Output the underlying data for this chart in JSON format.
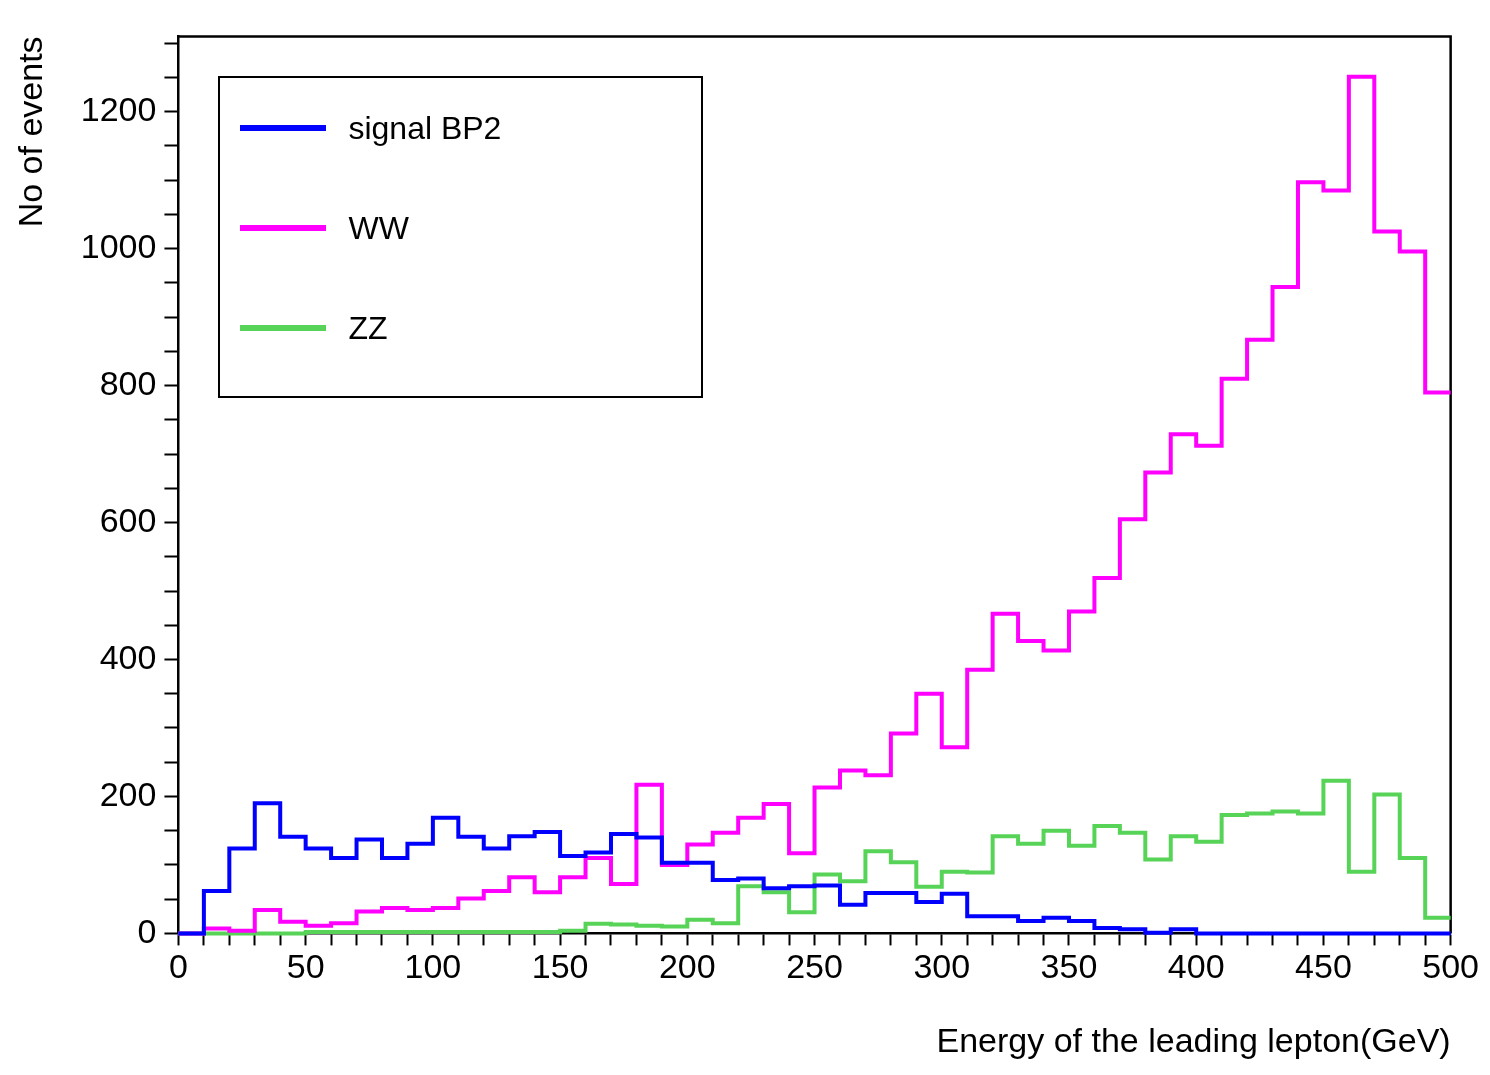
{
  "chart_data": {
    "type": "histogram",
    "xlabel": "Energy of the leading lepton(GeV)",
    "ylabel": "No of events",
    "bins": [
      0,
      10,
      20,
      30,
      40,
      50,
      60,
      70,
      80,
      90,
      100,
      110,
      120,
      130,
      140,
      150,
      160,
      170,
      180,
      190,
      200,
      210,
      220,
      230,
      240,
      250,
      260,
      270,
      280,
      290,
      300,
      310,
      320,
      330,
      340,
      350,
      360,
      370,
      380,
      390,
      400,
      410,
      420,
      430,
      440,
      450,
      460,
      470,
      480,
      490,
      500
    ],
    "series": [
      {
        "name": "signal BP2",
        "color": "#0000ff",
        "values": [
          0,
          62,
          124,
          190,
          141,
          124,
          110,
          137,
          110,
          131,
          169,
          141,
          124,
          142,
          148,
          113,
          118,
          145,
          140,
          103,
          103,
          78,
          80,
          66,
          69,
          70,
          42,
          59,
          59,
          46,
          58,
          25,
          25,
          18,
          23,
          18,
          8,
          6,
          1,
          6,
          0,
          0,
          0,
          0,
          0,
          0,
          0,
          0,
          0,
          0
        ]
      },
      {
        "name": "WW",
        "color": "#ff00ff",
        "values": [
          0,
          7,
          4,
          34,
          17,
          11,
          15,
          32,
          37,
          34,
          37,
          51,
          62,
          82,
          60,
          82,
          110,
          72,
          217,
          100,
          130,
          147,
          169,
          189,
          117,
          213,
          238,
          231,
          292,
          350,
          272,
          385,
          467,
          427,
          413,
          470,
          519,
          605,
          673,
          729,
          712,
          810,
          867,
          944,
          1097,
          1085,
          1251,
          1025,
          996,
          790
        ]
      },
      {
        "name": "ZZ",
        "color": "#57d457",
        "values": [
          0,
          0,
          0,
          0,
          0,
          2,
          2,
          2,
          2,
          2,
          2,
          2,
          2,
          2,
          2,
          4,
          14,
          13,
          11,
          10,
          20,
          15,
          69,
          60,
          31,
          86,
          76,
          120,
          104,
          68,
          90,
          89,
          142,
          131,
          150,
          128,
          157,
          147,
          108,
          142,
          134,
          173,
          175,
          178,
          175,
          223,
          90,
          203,
          110,
          23
        ]
      }
    ],
    "xlim": [
      0,
      500
    ],
    "xticks": [
      0,
      {
        "value": 10,
        "label": null
      },
      {
        "value": 20,
        "label": null
      },
      {
        "value": 30,
        "label": null
      },
      {
        "value": 40,
        "label": null
      },
      50,
      {
        "value": 60,
        "label": null
      },
      {
        "value": 70,
        "label": null
      },
      {
        "value": 80,
        "label": null
      },
      {
        "value": 90,
        "label": null
      },
      100,
      {
        "value": 110,
        "label": null
      },
      {
        "value": 120,
        "label": null
      },
      {
        "value": 130,
        "label": null
      },
      {
        "value": 140,
        "label": null
      },
      150,
      {
        "value": 160,
        "label": null
      },
      {
        "value": 170,
        "label": null
      },
      {
        "value": 180,
        "label": null
      },
      {
        "value": 190,
        "label": null
      },
      200,
      {
        "value": 210,
        "label": null
      },
      {
        "value": 220,
        "label": null
      },
      {
        "value": 230,
        "label": null
      },
      {
        "value": 240,
        "label": null
      },
      250,
      {
        "value": 260,
        "label": null
      },
      {
        "value": 270,
        "label": null
      },
      {
        "value": 280,
        "label": null
      },
      {
        "value": 290,
        "label": null
      },
      300,
      {
        "value": 310,
        "label": null
      },
      {
        "value": 320,
        "label": null
      },
      {
        "value": 330,
        "label": null
      },
      {
        "value": 340,
        "label": null
      },
      350,
      {
        "value": 360,
        "label": null
      },
      {
        "value": 370,
        "label": null
      },
      {
        "value": 380,
        "label": null
      },
      {
        "value": 390,
        "label": null
      },
      400,
      {
        "value": 410,
        "label": null
      },
      {
        "value": 420,
        "label": null
      },
      {
        "value": 430,
        "label": null
      },
      {
        "value": 440,
        "label": null
      },
      450,
      {
        "value": 460,
        "label": null
      },
      {
        "value": 470,
        "label": null
      },
      {
        "value": 480,
        "label": null
      },
      {
        "value": 490,
        "label": null
      },
      500
    ],
    "ylim": [
      0,
      1310
    ],
    "yticks": [
      0,
      {
        "value": 50,
        "label": null
      },
      {
        "value": 100,
        "label": null
      },
      {
        "value": 150,
        "label": null
      },
      200,
      {
        "value": 250,
        "label": null
      },
      {
        "value": 300,
        "label": null
      },
      {
        "value": 350,
        "label": null
      },
      400,
      {
        "value": 450,
        "label": null
      },
      {
        "value": 500,
        "label": null
      },
      {
        "value": 550,
        "label": null
      },
      600,
      {
        "value": 650,
        "label": null
      },
      {
        "value": 700,
        "label": null
      },
      {
        "value": 750,
        "label": null
      },
      800,
      {
        "value": 850,
        "label": null
      },
      {
        "value": 900,
        "label": null
      },
      {
        "value": 950,
        "label": null
      },
      1000,
      {
        "value": 1050,
        "label": null
      },
      {
        "value": 1100,
        "label": null
      },
      {
        "value": 1150,
        "label": null
      },
      1200,
      {
        "value": 1250,
        "label": null
      },
      {
        "value": 1300,
        "label": null
      }
    ],
    "grid": false,
    "legend": "top left"
  }
}
